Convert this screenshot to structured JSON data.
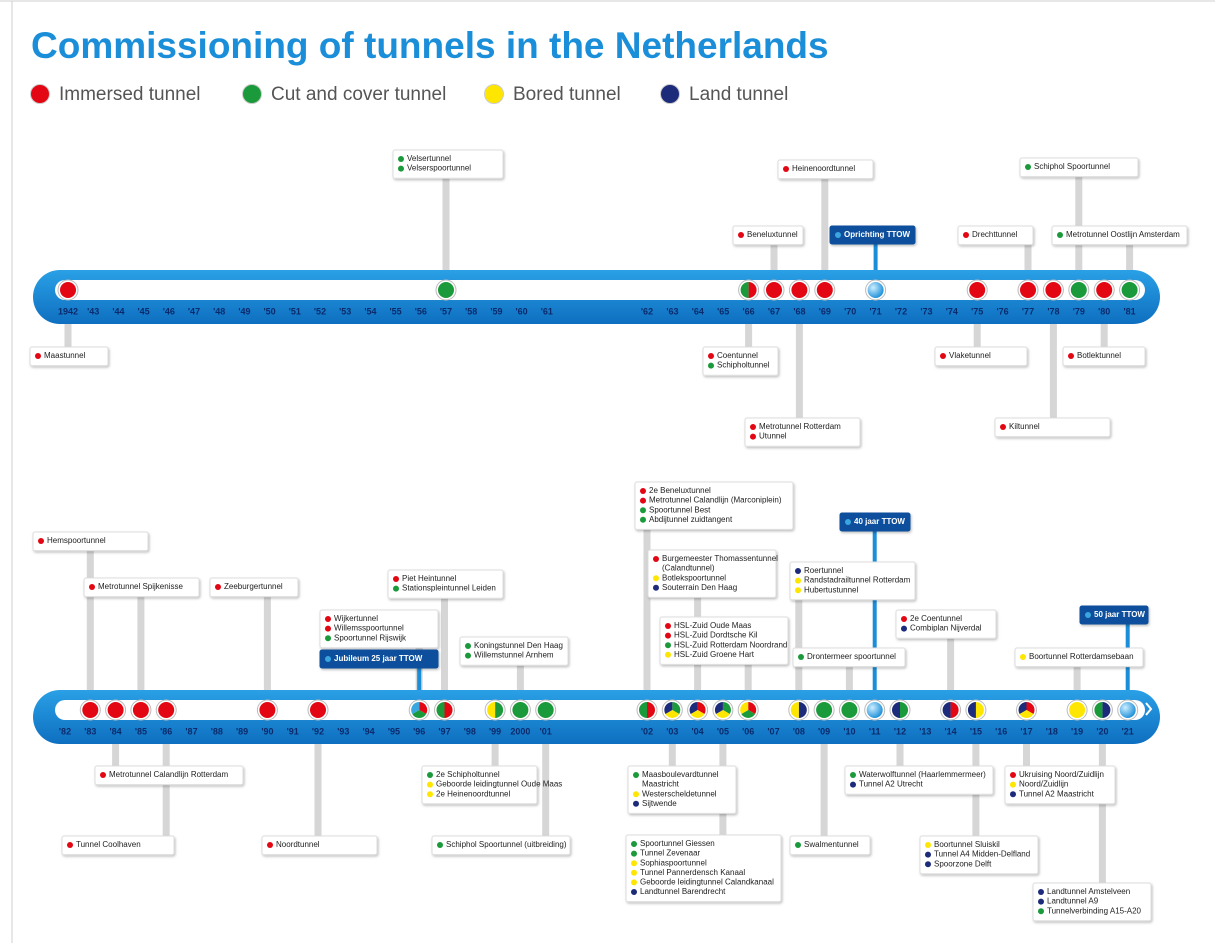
{
  "title": "Commissioning of tunnels in the Netherlands",
  "legend": [
    {
      "label": "Immersed tunnel",
      "color": "#e30613"
    },
    {
      "label": "Cut and cover tunnel",
      "color": "#1a9a3a"
    },
    {
      "label": "Bored tunnel",
      "color": "#ffe600"
    },
    {
      "label": "Land tunnel",
      "color": "#1c2b7a"
    }
  ],
  "timelines": [
    {
      "years": [
        "1942",
        "'43",
        "'44",
        "'45",
        "'46",
        "'47",
        "'48",
        "'49",
        "'50",
        "'51",
        "'52",
        "'53",
        "'54",
        "'55",
        "'56",
        "'57",
        "'58",
        "'59",
        "'60",
        "'61",
        "'62",
        "'63",
        "'64",
        "'65",
        "'66",
        "'67",
        "'68",
        "'69",
        "'70",
        "'71",
        "'72",
        "'73",
        "'74",
        "'75",
        "'76",
        "'77",
        "'78",
        "'79",
        "'80",
        "'81"
      ]
    },
    {
      "years": [
        "'82",
        "'83",
        "'84",
        "'85",
        "'86",
        "'87",
        "'88",
        "'89",
        "'90",
        "'91",
        "'92",
        "'93",
        "'94",
        "'95",
        "'96",
        "'97",
        "'98",
        "'99",
        "2000",
        "'01",
        "'02",
        "'03",
        "'04",
        "'05",
        "'06",
        "'07",
        "'08",
        "'09",
        "'10",
        "'11",
        "'12",
        "'13",
        "'14",
        "'15",
        "'16",
        "'17",
        "'18",
        "'19",
        "'20",
        "'21"
      ]
    }
  ],
  "callouts": [
    {
      "entries": [
        {
          "color": "#1a9a3a",
          "name": "Velsertunnel"
        },
        {
          "color": "#1a9a3a",
          "name": "Velserspoortunnel"
        }
      ]
    },
    {
      "entries": [
        {
          "color": "#e30613",
          "name": "Heinenoordtunnel"
        }
      ]
    },
    {
      "entries": [
        {
          "color": "#e30613",
          "name": "Beneluxtunnel"
        }
      ]
    },
    {
      "highlight": true,
      "entries": [
        {
          "color": "#3aa6e0",
          "name": "Oprichting TTOW"
        }
      ]
    },
    {
      "entries": [
        {
          "color": "#1a9a3a",
          "name": "Schiphol Spoortunnel"
        }
      ]
    },
    {
      "entries": [
        {
          "color": "#e30613",
          "name": "Drechttunnel"
        }
      ]
    },
    {
      "entries": [
        {
          "color": "#1a9a3a",
          "name": "Metrotunnel Oostlijn Amsterdam"
        }
      ]
    },
    {
      "entries": [
        {
          "color": "#e30613",
          "name": "Maastunnel"
        }
      ]
    },
    {
      "entries": [
        {
          "color": "#e30613",
          "name": "Coentunnel"
        },
        {
          "color": "#1a9a3a",
          "name": "Schipholtunnel"
        }
      ]
    },
    {
      "entries": [
        {
          "color": "#e30613",
          "name": "Metrotunnel Rotterdam"
        },
        {
          "color": "#e30613",
          "name": "Utunnel"
        }
      ]
    },
    {
      "entries": [
        {
          "color": "#e30613",
          "name": "Vlaketunnel"
        }
      ]
    },
    {
      "entries": [
        {
          "color": "#e30613",
          "name": "Botlektunnel"
        }
      ]
    },
    {
      "entries": [
        {
          "color": "#e30613",
          "name": "Kiltunnel"
        }
      ]
    },
    {
      "entries": [
        {
          "color": "#e30613",
          "name": "Hemspoortunnel"
        }
      ]
    },
    {
      "entries": [
        {
          "color": "#e30613",
          "name": "Metrotunnel Spijkenisse"
        }
      ]
    },
    {
      "entries": [
        {
          "color": "#e30613",
          "name": "Zeeburgertunnel"
        }
      ]
    },
    {
      "entries": [
        {
          "color": "#e30613",
          "name": "Wijkertunnel"
        },
        {
          "color": "#e30613",
          "name": "Willemsspoortunnel"
        },
        {
          "color": "#1a9a3a",
          "name": "Spoortunnel Rijswijk"
        }
      ]
    },
    {
      "highlight": true,
      "entries": [
        {
          "color": "#3aa6e0",
          "name": "Jubileum 25 jaar TTOW"
        }
      ]
    },
    {
      "entries": [
        {
          "color": "#e30613",
          "name": "Piet Heintunnel"
        },
        {
          "color": "#1a9a3a",
          "name": "Stationspleintunnel Leiden"
        }
      ]
    },
    {
      "entries": [
        {
          "color": "#1a9a3a",
          "name": "Koningstunnel Den Haag"
        },
        {
          "color": "#1a9a3a",
          "name": "Willemstunnel Arnhem"
        }
      ]
    },
    {
      "entries": [
        {
          "color": "#e30613",
          "name": "2e Beneluxtunnel"
        },
        {
          "color": "#e30613",
          "name": "Metrotunnel Calandlijn (Marconiplein)"
        },
        {
          "color": "#1a9a3a",
          "name": "Spoortunnel Best"
        },
        {
          "color": "#1a9a3a",
          "name": "Abdijtunnel zuidtangent"
        }
      ]
    },
    {
      "entries": [
        {
          "color": "#e30613",
          "name": [
            "Burgemeester Thomassentunnel",
            "(Calandtunnel)"
          ]
        },
        {
          "color": "#ffe600",
          "name": "Botlekspoortunnel"
        },
        {
          "color": "#1c2b7a",
          "name": "Souterrain Den Haag"
        }
      ]
    },
    {
      "entries": [
        {
          "color": "#e30613",
          "name": "HSL-Zuid Oude Maas"
        },
        {
          "color": "#e30613",
          "name": "HSL-Zuid Dordtsche Kil"
        },
        {
          "color": "#1a9a3a",
          "name": "HSL-Zuid Rotterdam Noordrand"
        },
        {
          "color": "#ffe600",
          "name": "HSL-Zuid Groene Hart"
        }
      ]
    },
    {
      "highlight": true,
      "entries": [
        {
          "color": "#3aa6e0",
          "name": "40 jaar TTOW"
        }
      ]
    },
    {
      "entries": [
        {
          "color": "#1c2b7a",
          "name": "Roertunnel"
        },
        {
          "color": "#ffe600",
          "name": "Randstadrailtunnel Rotterdam"
        },
        {
          "color": "#ffe600",
          "name": "Hubertustunnel"
        }
      ]
    },
    {
      "entries": [
        {
          "color": "#1a9a3a",
          "name": "Drontermeer spoortunnel"
        }
      ]
    },
    {
      "entries": [
        {
          "color": "#e30613",
          "name": "2e Coentunnel"
        },
        {
          "color": "#1c2b7a",
          "name": "Combiplan Nijverdal"
        }
      ]
    },
    {
      "highlight": true,
      "entries": [
        {
          "color": "#3aa6e0",
          "name": "50 jaar TTOW"
        }
      ]
    },
    {
      "entries": [
        {
          "color": "#ffe600",
          "name": "Boortunnel Rotterdamsebaan"
        }
      ]
    },
    {
      "entries": [
        {
          "color": "#e30613",
          "name": "Metrotunnel Calandlijn Rotterdam"
        }
      ]
    },
    {
      "entries": [
        {
          "color": "#e30613",
          "name": "Tunnel Coolhaven"
        }
      ]
    },
    {
      "entries": [
        {
          "color": "#e30613",
          "name": "Noordtunnel"
        }
      ]
    },
    {
      "entries": [
        {
          "color": "#1a9a3a",
          "name": "2e Schipholtunnel"
        },
        {
          "color": "#ffe600",
          "name": "Geboorde leidingtunnel Oude Maas"
        },
        {
          "color": "#ffe600",
          "name": "2e Heinenoordtunnel"
        }
      ]
    },
    {
      "entries": [
        {
          "color": "#1a9a3a",
          "name": "Schiphol Spoortunnel (uitbreiding)"
        }
      ]
    },
    {
      "entries": [
        {
          "color": "#1a9a3a",
          "name": [
            "Maasboulevardtunnel",
            "Maastricht"
          ]
        },
        {
          "color": "#ffe600",
          "name": "Westerscheldetunnel"
        },
        {
          "color": "#1c2b7a",
          "name": "Sijtwende"
        }
      ]
    },
    {
      "entries": [
        {
          "color": "#1a9a3a",
          "name": "Spoortunnel Giessen"
        },
        {
          "color": "#1a9a3a",
          "name": "Tunnel Zevenaar"
        },
        {
          "color": "#ffe600",
          "name": "Sophiaspoortunnel"
        },
        {
          "color": "#ffe600",
          "name": "Tunnel Pannerdensch Kanaal"
        },
        {
          "color": "#ffe600",
          "name": "Geboorde leidingtunnel Calandkanaal"
        },
        {
          "color": "#1c2b7a",
          "name": "Landtunnel Barendrecht"
        }
      ]
    },
    {
      "entries": [
        {
          "color": "#1a9a3a",
          "name": "Swalmentunnel"
        }
      ]
    },
    {
      "entries": [
        {
          "color": "#1a9a3a",
          "name": "Waterwolftunnel (Haarlemmermeer)"
        },
        {
          "color": "#1c2b7a",
          "name": "Tunnel A2 Utrecht"
        }
      ]
    },
    {
      "entries": [
        {
          "color": "#ffe600",
          "name": "Boortunnel Sluiskil"
        },
        {
          "color": "#1c2b7a",
          "name": "Tunnel A4 Midden-Delfland"
        },
        {
          "color": "#1c2b7a",
          "name": "Spoorzone Delft"
        }
      ]
    },
    {
      "entries": [
        {
          "color": "#e30613",
          "name": "Ukruising Noord/Zuidlijn"
        },
        {
          "color": "#ffe600",
          "name": "Noord/Zuidlijn"
        },
        {
          "color": "#1c2b7a",
          "name": "Tunnel A2 Maastricht"
        }
      ]
    },
    {
      "entries": [
        {
          "color": "#1c2b7a",
          "name": "Landtunnel Amstelveen"
        },
        {
          "color": "#1c2b7a",
          "name": "Landtunnel A9"
        },
        {
          "color": "#1a9a3a",
          "name": "Tunnelverbinding A15-A20"
        }
      ]
    }
  ]
}
